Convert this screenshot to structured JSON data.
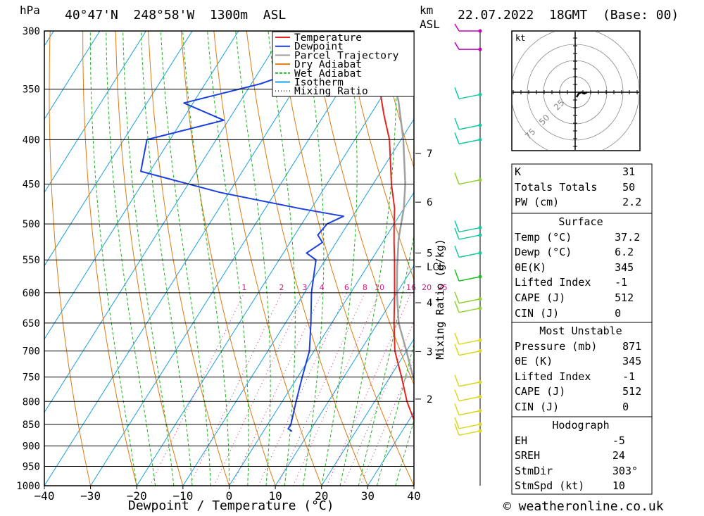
{
  "header": {
    "location": "40°47'N  248°58'W  1300m  ASL",
    "date": "22.07.2022  18GMT  (Base: 00)",
    "hpa_label": "hPa",
    "km_label": "km",
    "asl_label": "ASL",
    "kt_label": "kt",
    "footer": "© weatheronline.co.uk"
  },
  "chart_data": {
    "type": "line",
    "xlabel": "Dewpoint / Temperature (°C)",
    "ylabel": "hPa",
    "xlim": [
      -40,
      40
    ],
    "ylim": [
      1000,
      300
    ],
    "skew": true,
    "x_ticks": [
      -40,
      -30,
      -20,
      -10,
      0,
      10,
      20,
      30,
      40
    ],
    "pressure_ticks": [
      300,
      350,
      400,
      450,
      500,
      550,
      600,
      650,
      700,
      750,
      800,
      850,
      900,
      950,
      1000
    ],
    "km_ticks": [
      {
        "km": "7",
        "p": 415
      },
      {
        "km": "6",
        "p": 472
      },
      {
        "km": "5",
        "p": 540
      },
      {
        "km": "4",
        "p": 616
      },
      {
        "km": "3",
        "p": 701
      },
      {
        "km": "2",
        "p": 795
      },
      {
        "km": "LCL",
        "p": 560
      }
    ],
    "mixing_ratio_label": "Mixing Ratio (g/kg)",
    "mixing_ratio_values": [
      "1",
      "2",
      "3",
      "4",
      "6",
      "8",
      "10",
      "16",
      "20",
      "25"
    ],
    "legend": [
      {
        "name": "Temperature",
        "color": "#e8231e"
      },
      {
        "name": "Dewpoint",
        "color": "#1b3fe0"
      },
      {
        "name": "Parcel Trajectory",
        "color": "#a0a0a0"
      },
      {
        "name": "Dry Adiabat",
        "color": "#e07a10"
      },
      {
        "name": "Wet Adiabat",
        "color": "#19b419"
      },
      {
        "name": "Isotherm",
        "color": "#1aa0e0"
      },
      {
        "name": "Mixing Ratio",
        "color": "#d0207e"
      }
    ],
    "series": [
      {
        "name": "Temperature",
        "points": [
          [
            866,
            37.2
          ],
          [
            850,
            32.0
          ],
          [
            800,
            27.0
          ],
          [
            750,
            22.5
          ],
          [
            700,
            17.5
          ],
          [
            650,
            13.5
          ],
          [
            600,
            9.5
          ],
          [
            550,
            5.0
          ],
          [
            525,
            2.5
          ],
          [
            500,
            0.0
          ],
          [
            480,
            -2.0
          ],
          [
            450,
            -6.0
          ],
          [
            430,
            -8.5
          ],
          [
            400,
            -12.5
          ],
          [
            375,
            -17.0
          ],
          [
            350,
            -21.5
          ],
          [
            325,
            -26.5
          ],
          [
            300,
            -31.5
          ]
        ]
      },
      {
        "name": "Dewpoint",
        "points": [
          [
            866,
            6.2
          ],
          [
            860,
            5.0
          ],
          [
            850,
            5.0
          ],
          [
            800,
            3.0
          ],
          [
            750,
            1.0
          ],
          [
            700,
            -1.0
          ],
          [
            650,
            -4.5
          ],
          [
            600,
            -8.5
          ],
          [
            550,
            -12.0
          ],
          [
            540,
            -15.0
          ],
          [
            525,
            -13.0
          ],
          [
            515,
            -15.0
          ],
          [
            500,
            -14.5
          ],
          [
            490,
            -12.0
          ],
          [
            480,
            -22.5
          ],
          [
            460,
            -42.0
          ],
          [
            435,
            -62.0
          ],
          [
            400,
            -65.0
          ],
          [
            380,
            -51.0
          ],
          [
            363,
            -62.0
          ],
          [
            345,
            -48.0
          ],
          [
            330,
            -40.0
          ],
          [
            318,
            -40.0
          ],
          [
            313,
            -38.0
          ],
          [
            300,
            -48.0
          ]
        ]
      },
      {
        "name": "Parcel Trajectory",
        "points": [
          [
            866,
            37.2
          ],
          [
            850,
            35.5
          ],
          [
            800,
            30.5
          ],
          [
            750,
            25.0
          ],
          [
            700,
            20.0
          ],
          [
            650,
            14.5
          ],
          [
            600,
            10.0
          ],
          [
            560,
            6.5
          ],
          [
            520,
            3.0
          ],
          [
            480,
            0.0
          ],
          [
            450,
            -3.0
          ],
          [
            400,
            -9.5
          ],
          [
            360,
            -16.0
          ],
          [
            320,
            -25.5
          ],
          [
            300,
            -31.0
          ]
        ]
      }
    ],
    "wind_profile": [
      {
        "p": 300,
        "color": "#c000c0"
      },
      {
        "p": 315,
        "color": "#c000c0"
      },
      {
        "p": 355,
        "color": "#18c8a0"
      },
      {
        "p": 385,
        "color": "#18c8a0"
      },
      {
        "p": 400,
        "color": "#18c8a0"
      },
      {
        "p": 445,
        "color": "#90d030"
      },
      {
        "p": 505,
        "color": "#18c8a0"
      },
      {
        "p": 515,
        "color": "#18c8a0"
      },
      {
        "p": 540,
        "color": "#18c8a0"
      },
      {
        "p": 575,
        "color": "#18c020"
      },
      {
        "p": 610,
        "color": "#90d030"
      },
      {
        "p": 625,
        "color": "#90d030"
      },
      {
        "p": 680,
        "color": "#d8d820"
      },
      {
        "p": 700,
        "color": "#d8d820"
      },
      {
        "p": 760,
        "color": "#d8d820"
      },
      {
        "p": 790,
        "color": "#d8d820"
      },
      {
        "p": 820,
        "color": "#d8d820"
      },
      {
        "p": 850,
        "color": "#d8d820"
      },
      {
        "p": 865,
        "color": "#d8d820"
      }
    ],
    "hodograph_rings": [
      "25",
      "50",
      "75"
    ]
  },
  "stats": {
    "block1": [
      [
        "K",
        "31"
      ],
      [
        "Totals Totals",
        "50"
      ],
      [
        "PW (cm)",
        "2.2"
      ]
    ],
    "surface_title": "Surface",
    "surface": [
      [
        "Temp (°C)",
        "37.2"
      ],
      [
        "Dewp (°C)",
        "6.2"
      ],
      [
        "θE(K)",
        "345"
      ],
      [
        "Lifted Index",
        "-1"
      ],
      [
        "CAPE (J)",
        "512"
      ],
      [
        "CIN (J)",
        "0"
      ]
    ],
    "mu_title": "Most Unstable",
    "mu": [
      [
        "Pressure (mb)",
        "871"
      ],
      [
        "θE (K)",
        "345"
      ],
      [
        "Lifted Index",
        "-1"
      ],
      [
        "CAPE (J)",
        "512"
      ],
      [
        "CIN (J)",
        "0"
      ]
    ],
    "hodo_title": "Hodograph",
    "hodo": [
      [
        "EH",
        "-5"
      ],
      [
        "SREH",
        "24"
      ],
      [
        "StmDir",
        "303°"
      ],
      [
        "StmSpd (kt)",
        "10"
      ]
    ]
  }
}
